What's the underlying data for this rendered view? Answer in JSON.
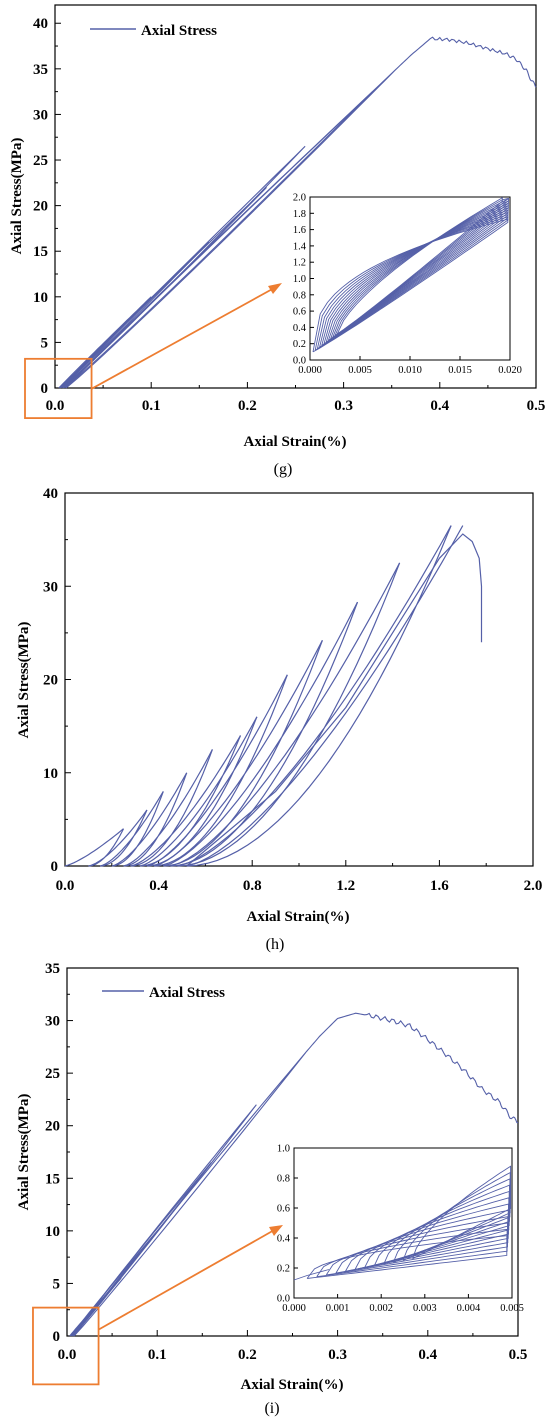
{
  "chart_data": [
    {
      "type": "line",
      "panel_label": "(g)",
      "xlabel": "Axial Strain(%)",
      "ylabel": "Axial Stress(MPa)",
      "xlim": [
        0,
        0.5
      ],
      "ylim": [
        0,
        42
      ],
      "xticks": [
        "0.0",
        "0.1",
        "0.2",
        "0.3",
        "0.4",
        "0.5"
      ],
      "yticks": [
        "0",
        "5",
        "10",
        "15",
        "20",
        "25",
        "30",
        "35",
        "40"
      ],
      "legend": {
        "label": "Axial Stress",
        "position": "top-left"
      },
      "series_color": "#5560a8",
      "highlight_color": "#ed7d31",
      "highlight_box": {
        "xlim": [
          0,
          0.038
        ],
        "ylim": [
          -3.3,
          3.2
        ]
      },
      "loop_peaks": [
        [
          0.1,
          10
        ],
        [
          0.16,
          16
        ],
        [
          0.22,
          22
        ],
        [
          0.26,
          26.5
        ],
        [
          0.33,
          32.5
        ],
        [
          0.355,
          35
        ]
      ],
      "envelope": [
        [
          0.355,
          35
        ],
        [
          0.37,
          36.5
        ],
        [
          0.39,
          38.3
        ],
        [
          0.41,
          38.2
        ],
        [
          0.43,
          37.8
        ],
        [
          0.45,
          37.2
        ],
        [
          0.47,
          36.6
        ],
        [
          0.48,
          36.0
        ],
        [
          0.49,
          34.8
        ],
        [
          0.495,
          33.8
        ],
        [
          0.5,
          33.0
        ]
      ],
      "inset": {
        "xlim": [
          0,
          0.02
        ],
        "ylim": [
          0,
          2.0
        ],
        "xticks": [
          "0.000",
          "0.005",
          "0.010",
          "0.015",
          "0.020"
        ],
        "yticks": [
          "0.0",
          "0.2",
          "0.4",
          "0.6",
          "0.8",
          "1.0",
          "1.2",
          "1.4",
          "1.6",
          "1.8",
          "2.0"
        ],
        "loop_count": 12
      }
    },
    {
      "type": "line",
      "panel_label": "(h)",
      "xlabel": "Axial Strain(%)",
      "ylabel": "Axial Stress(MPa)",
      "xlim": [
        0,
        2.0
      ],
      "ylim": [
        0,
        40
      ],
      "xticks": [
        "0.0",
        "0.4",
        "0.8",
        "1.2",
        "1.6",
        "2.0"
      ],
      "yticks": [
        "0",
        "10",
        "20",
        "30",
        "40"
      ],
      "series_color": "#5560a8",
      "loops": [
        {
          "x0": 0.1,
          "x1": 0.25,
          "y": 4
        },
        {
          "x0": 0.15,
          "x1": 0.35,
          "y": 6
        },
        {
          "x0": 0.2,
          "x1": 0.42,
          "y": 8
        },
        {
          "x0": 0.25,
          "x1": 0.52,
          "y": 10
        },
        {
          "x0": 0.28,
          "x1": 0.63,
          "y": 12.5
        },
        {
          "x0": 0.32,
          "x1": 0.75,
          "y": 14
        },
        {
          "x0": 0.35,
          "x1": 0.82,
          "y": 16
        },
        {
          "x0": 0.38,
          "x1": 0.95,
          "y": 20.5
        },
        {
          "x0": 0.42,
          "x1": 1.1,
          "y": 24.2
        },
        {
          "x0": 0.45,
          "x1": 1.25,
          "y": 28.3
        },
        {
          "x0": 0.48,
          "x1": 1.43,
          "y": 32.5
        },
        {
          "x0": 0.52,
          "x1": 1.65,
          "y": 36.5
        }
      ],
      "post_peak": [
        [
          0.52,
          0
        ],
        [
          0.9,
          8
        ],
        [
          1.2,
          17
        ],
        [
          1.45,
          27
        ],
        [
          1.6,
          33
        ],
        [
          1.7,
          35.6
        ],
        [
          1.74,
          34.8
        ],
        [
          1.77,
          33
        ],
        [
          1.78,
          30
        ],
        [
          1.78,
          24
        ]
      ]
    },
    {
      "type": "line",
      "panel_label": "(i)",
      "xlabel": "Axial Strain(%)",
      "ylabel": "Axial Stress(MPa)",
      "xlim": [
        0,
        0.5
      ],
      "ylim": [
        0,
        35
      ],
      "xticks": [
        "0.0",
        "0.1",
        "0.2",
        "0.3",
        "0.4",
        "0.5"
      ],
      "yticks": [
        "0",
        "5",
        "10",
        "15",
        "20",
        "25",
        "30",
        "35"
      ],
      "legend": {
        "label": "Axial Stress",
        "position": "top-left"
      },
      "series_color": "#5560a8",
      "highlight_color": "#ed7d31",
      "highlight_box": {
        "xlim": [
          -0.01,
          0.035
        ],
        "ylim": [
          -4.6,
          2.7
        ]
      },
      "loop_peaks": [
        [
          0.06,
          5.5
        ],
        [
          0.11,
          11
        ],
        [
          0.16,
          16.5
        ],
        [
          0.21,
          22
        ],
        [
          0.265,
          27
        ]
      ],
      "envelope": [
        [
          0.265,
          27
        ],
        [
          0.28,
          28.5
        ],
        [
          0.3,
          30.2
        ],
        [
          0.32,
          30.7
        ],
        [
          0.34,
          30.4
        ],
        [
          0.36,
          30.0
        ],
        [
          0.38,
          29.5
        ],
        [
          0.4,
          28.2
        ],
        [
          0.42,
          26.8
        ],
        [
          0.44,
          25.3
        ],
        [
          0.46,
          23.5
        ],
        [
          0.48,
          22.2
        ],
        [
          0.49,
          21.0
        ],
        [
          0.5,
          20.3
        ]
      ],
      "inset": {
        "xlim": [
          0,
          0.005
        ],
        "ylim": [
          0,
          1.0
        ],
        "xticks": [
          "0.000",
          "0.001",
          "0.002",
          "0.003",
          "0.004",
          "0.005"
        ],
        "yticks": [
          "0.0",
          "0.2",
          "0.4",
          "0.6",
          "0.8",
          "1.0"
        ],
        "loop_count": 12
      }
    }
  ]
}
